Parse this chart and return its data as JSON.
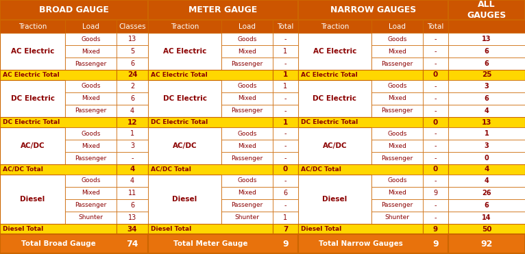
{
  "orange": "#D2691E",
  "gold": "#FFD700",
  "orange_grand": "#E8720C",
  "white": "#FFFFFF",
  "dark_red": "#8B0000",
  "border": "#CC6600",
  "text_white": "#FFFFFF",
  "text_black": "#000000",
  "sections": [
    {
      "name": "AC Electric",
      "rows": [
        {
          "load": "Goods",
          "bg_classes": "13",
          "mg_total": "-",
          "ng_total": "-",
          "all": "13"
        },
        {
          "load": "Mixed",
          "bg_classes": "5",
          "mg_total": "1",
          "ng_total": "-",
          "all": "6"
        },
        {
          "load": "Passenger",
          "bg_classes": "6",
          "mg_total": "-",
          "ng_total": "-",
          "all": "6"
        }
      ],
      "total_label": "AC Electric Total",
      "bg_total": "24",
      "mg_total": "1",
      "ng_total": "0",
      "all_total": "25"
    },
    {
      "name": "DC Electric",
      "rows": [
        {
          "load": "Goods",
          "bg_classes": "2",
          "mg_total": "1",
          "ng_total": "-",
          "all": "3"
        },
        {
          "load": "Mixed",
          "bg_classes": "6",
          "mg_total": "-",
          "ng_total": "-",
          "all": "6"
        },
        {
          "load": "Passenger",
          "bg_classes": "4",
          "mg_total": "-",
          "ng_total": "-",
          "all": "4"
        }
      ],
      "total_label": "DC Electric Total",
      "bg_total": "12",
      "mg_total": "1",
      "ng_total": "0",
      "all_total": "13"
    },
    {
      "name": "AC/DC",
      "rows": [
        {
          "load": "Goods",
          "bg_classes": "1",
          "mg_total": "-",
          "ng_total": "-",
          "all": "1"
        },
        {
          "load": "Mixed",
          "bg_classes": "3",
          "mg_total": "-",
          "ng_total": "-",
          "all": "3"
        },
        {
          "load": "Passenger",
          "bg_classes": "-",
          "mg_total": "-",
          "ng_total": "-",
          "all": "0"
        }
      ],
      "total_label": "AC/DC Total",
      "bg_total": "4",
      "mg_total": "0",
      "ng_total": "0",
      "all_total": "4"
    },
    {
      "name": "Diesel",
      "rows": [
        {
          "load": "Goods",
          "bg_classes": "4",
          "mg_total": "-",
          "ng_total": "-",
          "all": "4"
        },
        {
          "load": "Mixed",
          "bg_classes": "11",
          "mg_total": "6",
          "ng_total": "9",
          "all": "26"
        },
        {
          "load": "Passenger",
          "bg_classes": "6",
          "mg_total": "-",
          "ng_total": "-",
          "all": "6"
        },
        {
          "load": "Shunter",
          "bg_classes": "13",
          "mg_total": "1",
          "ng_total": "-",
          "all": "14"
        }
      ],
      "total_label": "Diesel Total",
      "bg_total": "34",
      "mg_total": "7",
      "ng_total": "9",
      "all_total": "50"
    }
  ],
  "grand_total": {
    "bg_label": "Total Broad Gauge",
    "bg_val": "74",
    "mg_label": "Total Meter Gauge",
    "mg_val": "9",
    "ng_label": "Total Narrow Gauges",
    "ng_val": "9",
    "all_val": "92"
  }
}
